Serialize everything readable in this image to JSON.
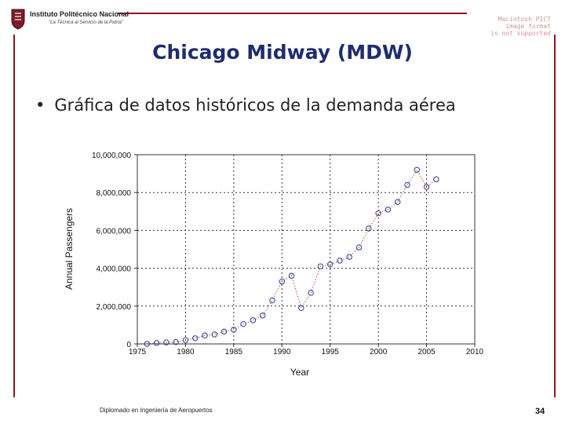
{
  "header": {
    "institution": "Instituto Politécnico Nacional",
    "motto": "\"La Técnica al Servicio de la Patria\"",
    "image_placeholder_lines": [
      "Macintosh PICT",
      "image format",
      "is not supported"
    ]
  },
  "slide": {
    "title": "Chicago Midway (MDW)",
    "bullet": "Gráfica de datos históricos de la demanda aérea"
  },
  "footer": {
    "left": "Diplomado en Ingeniería de Aeropuertos",
    "page": "34"
  },
  "colors": {
    "frame": "#8b1a1a",
    "title": "#1f2d6e",
    "marker": "#2a3a8c",
    "trend": "#c81e1e"
  },
  "chart_data": {
    "type": "scatter",
    "title": "",
    "xlabel": "Year",
    "ylabel": "Annual Passengers",
    "xlim": [
      1975,
      2010
    ],
    "ylim": [
      0,
      10000000
    ],
    "grid": true,
    "x_ticks": [
      1975,
      1980,
      1985,
      1990,
      1995,
      2000,
      2005,
      2010
    ],
    "x_tick_labels": [
      "1975",
      "1980",
      "1985",
      "1990",
      "1995",
      "2000",
      "2005",
      "2010"
    ],
    "y_ticks": [
      0,
      2000000,
      4000000,
      6000000,
      8000000,
      10000000
    ],
    "y_tick_labels": [
      "0",
      "2,000,000",
      "4,000,000",
      "6,000,000",
      "8,000,000",
      "10,000,000"
    ],
    "series": [
      {
        "x": [
          1976,
          1977,
          1978,
          1979,
          1980,
          1981,
          1982,
          1983,
          1984,
          1985,
          1986,
          1987,
          1988,
          1989,
          1990,
          1991,
          1992,
          1993,
          1994,
          1995,
          1996,
          1997,
          1998,
          1999,
          2000,
          2001,
          2002,
          2003,
          2004,
          2005,
          2006
        ],
        "y": [
          0,
          50000,
          80000,
          100000,
          200000,
          300000,
          450000,
          500000,
          650000,
          750000,
          1050000,
          1250000,
          1500000,
          2300000,
          3300000,
          3600000,
          1900000,
          2700000,
          4100000,
          4200000,
          4400000,
          4600000,
          5100000,
          6100000,
          6900000,
          7100000,
          7500000,
          8400000,
          9200000,
          8300000,
          8700000
        ]
      }
    ]
  }
}
